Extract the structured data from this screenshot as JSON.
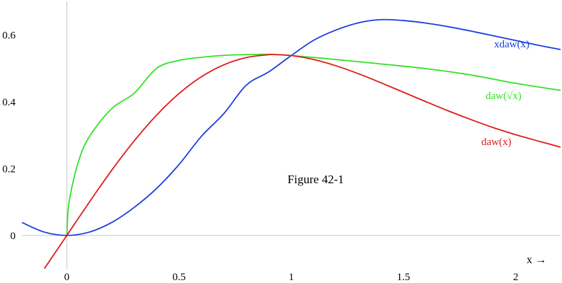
{
  "chart_data": {
    "type": "line",
    "title": "",
    "annotation": "Figure 42-1",
    "xlabel": "x →",
    "ylabel": "",
    "xlim": [
      -0.2,
      2.2
    ],
    "ylim": [
      -0.1,
      0.7
    ],
    "x_ticks": [
      {
        "value": 0,
        "label": "0"
      },
      {
        "value": 0.5,
        "label": "0.5"
      },
      {
        "value": 1,
        "label": "1"
      },
      {
        "value": 1.5,
        "label": "1.5"
      },
      {
        "value": 2,
        "label": "2"
      }
    ],
    "y_ticks": [
      {
        "value": 0,
        "label": "0"
      },
      {
        "value": 0.2,
        "label": "0.2"
      },
      {
        "value": 0.4,
        "label": "0.4"
      },
      {
        "value": 0.6,
        "label": "0.6"
      }
    ],
    "grid": false,
    "series": [
      {
        "name": "xdaw(x)",
        "color": "#1a3de0",
        "x": [
          -0.2,
          -0.1,
          0,
          0.1,
          0.2,
          0.3,
          0.4,
          0.5,
          0.6,
          0.7,
          0.8,
          0.9,
          1.0,
          1.1,
          1.2,
          1.3,
          1.4,
          1.5,
          1.6,
          1.7,
          1.8,
          1.9,
          2.0,
          2.1,
          2.2
        ],
        "y": [
          0.0387,
          0.0099,
          0,
          0.0099,
          0.0387,
          0.0837,
          0.1406,
          0.2122,
          0.2967,
          0.3648,
          0.4497,
          0.4893,
          0.5381,
          0.5838,
          0.6147,
          0.6361,
          0.6455,
          0.6427,
          0.6351,
          0.6242,
          0.6113,
          0.5973,
          0.583,
          0.569,
          0.556
        ]
      },
      {
        "name": "daw(√x)",
        "color": "#33e026",
        "x": [
          0,
          0.01,
          0.05,
          0.1,
          0.2,
          0.3,
          0.4,
          0.5,
          0.6,
          0.7,
          0.8,
          0.9,
          1.0,
          1.2,
          1.4,
          1.6,
          1.8,
          2.0,
          2.2
        ],
        "y": [
          0,
          0.0993,
          0.217,
          0.295,
          0.3794,
          0.4251,
          0.4998,
          0.5236,
          0.5328,
          0.5386,
          0.541,
          0.5416,
          0.5381,
          0.5262,
          0.513,
          0.499,
          0.48,
          0.455,
          0.434
        ]
      },
      {
        "name": "daw(x)",
        "color": "#e01a1a",
        "x": [
          -0.1,
          0,
          0.1,
          0.2,
          0.3,
          0.4,
          0.5,
          0.6,
          0.7,
          0.8,
          0.9,
          0.924,
          1.0,
          1.1,
          1.2,
          1.3,
          1.4,
          1.5,
          1.6,
          1.7,
          1.8,
          1.9,
          2.0,
          2.1,
          2.2
        ],
        "y": [
          -0.0993,
          0,
          0.0993,
          0.1948,
          0.2826,
          0.3599,
          0.4244,
          0.4748,
          0.5105,
          0.5321,
          0.5407,
          0.541,
          0.5381,
          0.5262,
          0.5073,
          0.4835,
          0.4565,
          0.4283,
          0.4,
          0.3725,
          0.3467,
          0.3225,
          0.3013,
          0.2824,
          0.264
        ]
      }
    ],
    "curve_labels": [
      {
        "series": 0,
        "text": "xdaw(x)"
      },
      {
        "series": 1,
        "text": "daw(√x)"
      },
      {
        "series": 2,
        "text": "daw(x)"
      }
    ]
  }
}
